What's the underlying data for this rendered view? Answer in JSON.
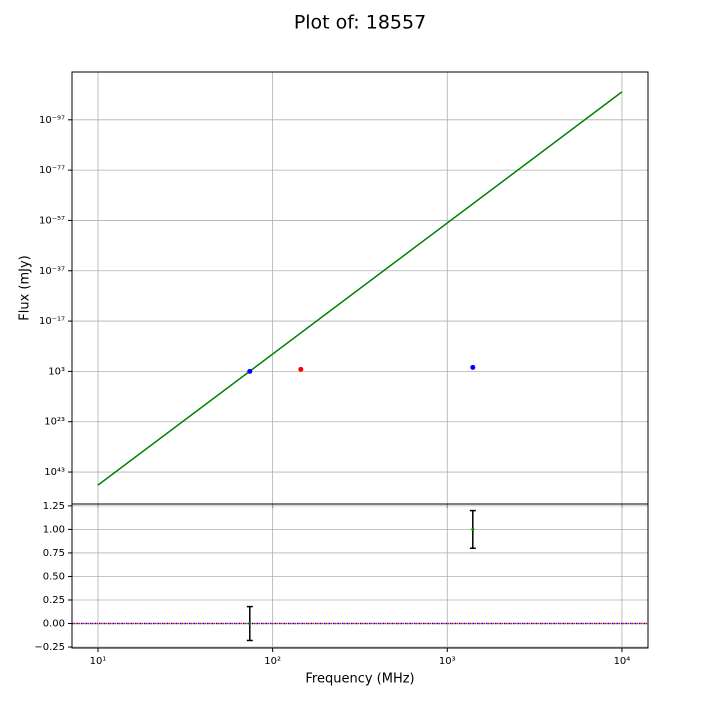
{
  "chart_data": [
    {
      "type": "scatter",
      "title": "Plot of: 18557",
      "ylabel": "Flux (mJy)",
      "xlog": true,
      "ylog": true,
      "grid": true,
      "ylim": [
        5e+55,
        1e-116
      ],
      "yticks": [
        {
          "value": 1e+43,
          "label": "10⁴³"
        },
        {
          "value": 1e+23,
          "label": "10²³"
        },
        {
          "value": 1000.0,
          "label": "10³"
        },
        {
          "value": 1e-17,
          "label": "10⁻¹⁷"
        },
        {
          "value": 1e-37,
          "label": "10⁻³⁷"
        },
        {
          "value": 1e-57,
          "label": "10⁻⁵⁷"
        },
        {
          "value": 1e-77,
          "label": "10⁻⁷⁷"
        },
        {
          "value": 1e-97,
          "label": "10⁻⁹⁷"
        }
      ],
      "series": [
        {
          "style": "line",
          "color": "#008000",
          "x": [
            10,
            10000
          ],
          "values": [
            1.6e+48,
            8e-109
          ]
        },
        {
          "style": "points",
          "color": "#0000ff",
          "x": [
            74,
            1400
          ],
          "values": [
            1000,
            25
          ]
        },
        {
          "style": "points",
          "color": "#ff0000",
          "x": [
            145
          ],
          "values": [
            160
          ]
        }
      ]
    },
    {
      "type": "errorbar",
      "xlabel": "Frequency (MHz)",
      "xlog": true,
      "grid": true,
      "hline": 0,
      "xlim": [
        7.1,
        14100
      ],
      "xticks": [
        {
          "value": 10,
          "label": "10¹"
        },
        {
          "value": 100,
          "label": "10²"
        },
        {
          "value": 1000,
          "label": "10³"
        },
        {
          "value": 10000,
          "label": "10⁴"
        }
      ],
      "ylim": [
        -0.26,
        1.27
      ],
      "yticks": [
        {
          "value": 1.25,
          "label": "1.25"
        },
        {
          "value": 1,
          "label": "1.00"
        },
        {
          "value": 0.75,
          "label": "0.75"
        },
        {
          "value": 0.5,
          "label": "0.50"
        },
        {
          "value": 0.25,
          "label": "0.25"
        },
        {
          "value": 0,
          "label": "0.00"
        },
        {
          "value": -0.25,
          "label": "−0.25"
        }
      ],
      "series": [
        {
          "color": "#008000",
          "x": [
            74,
            1400
          ],
          "values": [
            0,
            1
          ],
          "errors": [
            0.18,
            0.2
          ]
        }
      ]
    }
  ]
}
